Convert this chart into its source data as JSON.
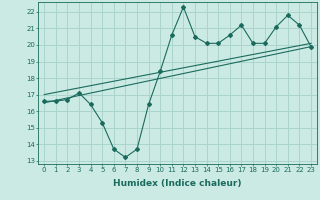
{
  "xlabel": "Humidex (Indice chaleur)",
  "ylabel": "",
  "bg_color": "#cceae4",
  "line_color": "#1a6b5e",
  "grid_color": "#aad4cc",
  "xlim": [
    -0.5,
    23.5
  ],
  "ylim": [
    12.8,
    22.6
  ],
  "yticks": [
    13,
    14,
    15,
    16,
    17,
    18,
    19,
    20,
    21,
    22
  ],
  "xticks": [
    0,
    1,
    2,
    3,
    4,
    5,
    6,
    7,
    8,
    9,
    10,
    11,
    12,
    13,
    14,
    15,
    16,
    17,
    18,
    19,
    20,
    21,
    22,
    23
  ],
  "series1_x": [
    0,
    1,
    2,
    3,
    4,
    5,
    6,
    7,
    8,
    9,
    10,
    11,
    12,
    13,
    14,
    15,
    16,
    17,
    18,
    19,
    20,
    21,
    22,
    23
  ],
  "series1_y": [
    16.6,
    16.6,
    16.7,
    17.1,
    16.4,
    15.3,
    13.7,
    13.2,
    13.7,
    16.4,
    18.4,
    20.6,
    22.3,
    20.5,
    20.1,
    20.1,
    20.6,
    21.2,
    20.1,
    20.1,
    21.1,
    21.8,
    21.2,
    19.9
  ],
  "series2_x": [
    0,
    23
  ],
  "series2_y": [
    16.5,
    19.9
  ],
  "series3_x": [
    0,
    23
  ],
  "series3_y": [
    17.0,
    20.1
  ],
  "tick_fontsize": 5.0,
  "label_fontsize": 6.5
}
